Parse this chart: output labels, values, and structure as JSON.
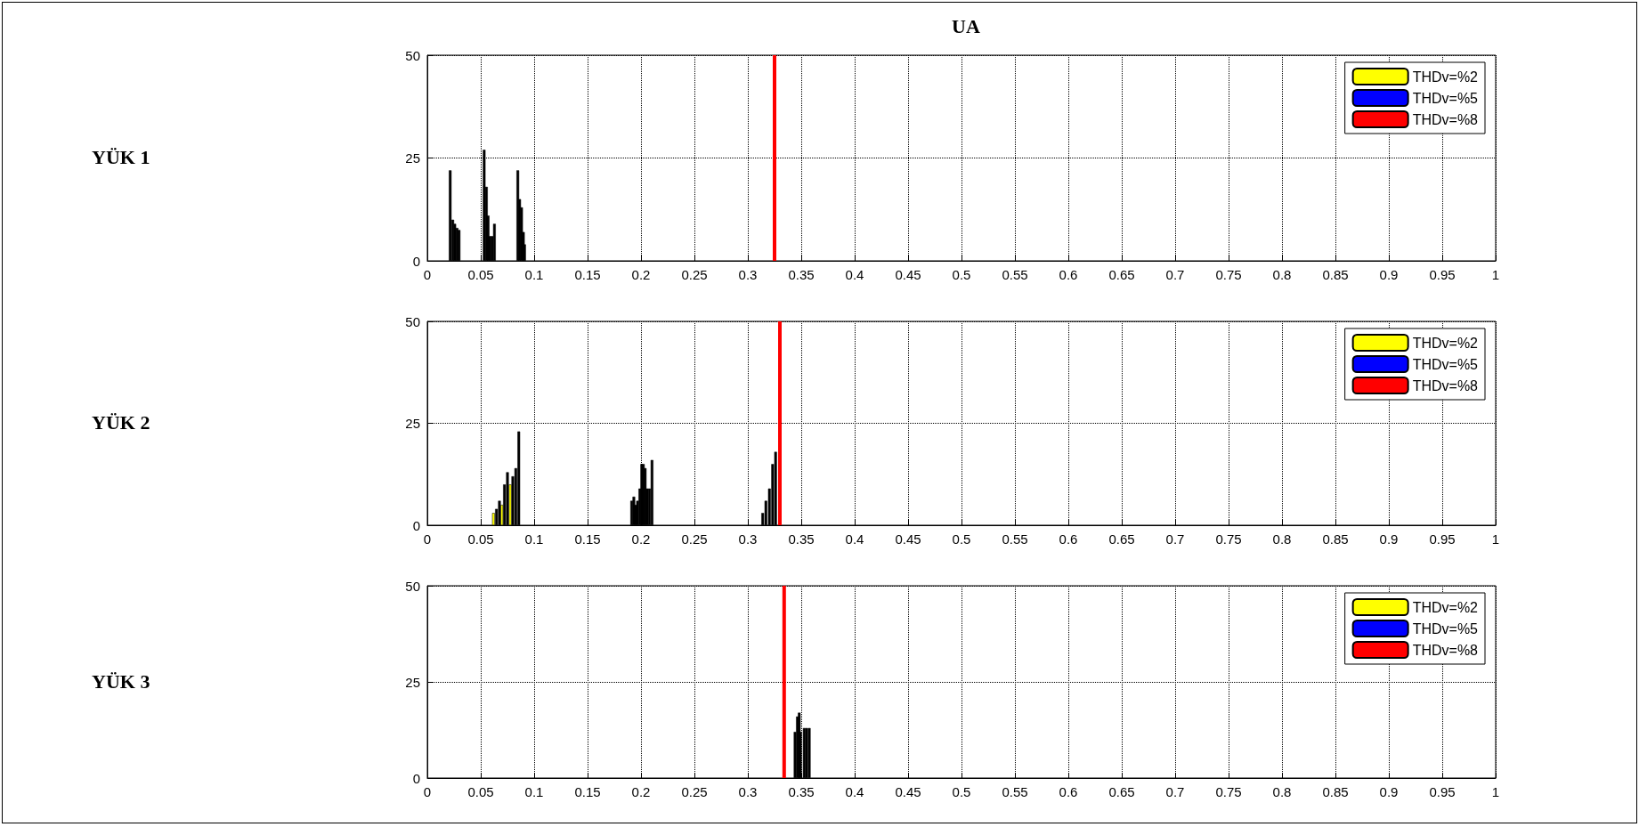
{
  "chart_data": [
    {
      "type": "bar",
      "title": "UA",
      "ylabel": "YÜK 1",
      "xlim": [
        0,
        1
      ],
      "ylim": [
        0,
        50
      ],
      "xticks": [
        0,
        0.05,
        0.1,
        0.15,
        0.2,
        0.25,
        0.3,
        0.35,
        0.4,
        0.45,
        0.5,
        0.55,
        0.6,
        0.65,
        0.7,
        0.75,
        0.8,
        0.85,
        0.9,
        0.95,
        1
      ],
      "yticks": [
        0,
        25,
        50
      ],
      "grid": true,
      "legend": "top right",
      "series": [
        {
          "name": "THDv=%2",
          "color": "#ffff00"
        },
        {
          "name": "THDv=%5",
          "color": "#0000ff"
        },
        {
          "name": "THDv=%8",
          "color": "#ff0000"
        },
        {
          "color": "#000000",
          "x": [
            0.0214,
            0.0238,
            0.0257,
            0.0278,
            0.0297,
            0.0532,
            0.0553,
            0.0569,
            0.0586,
            0.0606,
            0.0628,
            0.0847,
            0.0864,
            0.0882,
            0.0899,
            0.091
          ],
          "values": [
            22,
            10,
            9,
            8,
            7.5,
            27,
            18,
            11,
            6,
            6,
            9,
            22,
            15,
            13,
            7,
            4
          ]
        }
      ],
      "ref_lines": [
        {
          "axis": "x",
          "value": 0.325,
          "color": "#ff0000"
        }
      ]
    },
    {
      "type": "bar",
      "ylabel": "YÜK 2",
      "xlim": [
        0,
        1
      ],
      "ylim": [
        0,
        50
      ],
      "xticks": [
        0,
        0.05,
        0.1,
        0.15,
        0.2,
        0.25,
        0.3,
        0.35,
        0.4,
        0.45,
        0.5,
        0.55,
        0.6,
        0.65,
        0.7,
        0.75,
        0.8,
        0.85,
        0.9,
        0.95,
        1
      ],
      "yticks": [
        0,
        25,
        50
      ],
      "grid": true,
      "legend": "top right",
      "series": [
        {
          "name": "THDv=%2",
          "color": "#ffff00",
          "x": [
            0.0619,
            0.0697,
            0.0775
          ],
          "values": [
            3,
            5,
            10
          ]
        },
        {
          "name": "THDv=%5",
          "color": "#0000ff"
        },
        {
          "name": "THDv=%8",
          "color": "#ff0000"
        },
        {
          "color": "#000000",
          "x": [
            0.0647,
            0.0675,
            0.0722,
            0.075,
            0.08,
            0.0828,
            0.0856,
            0.1913,
            0.1933,
            0.1951,
            0.1968,
            0.1989,
            0.2007,
            0.2022,
            0.2039,
            0.2058,
            0.2079,
            0.2103,
            0.3139,
            0.3169,
            0.3202,
            0.3232,
            0.326
          ],
          "values": [
            4,
            6,
            10,
            13,
            12,
            14,
            23,
            6,
            7,
            5,
            6,
            9,
            15,
            15,
            14,
            9,
            9,
            16,
            3,
            6,
            9,
            15,
            18
          ]
        }
      ],
      "ref_lines": [
        {
          "axis": "x",
          "value": 0.33,
          "color": "#ff0000"
        }
      ]
    },
    {
      "type": "bar",
      "ylabel": "YÜK 3",
      "xlim": [
        0,
        1
      ],
      "ylim": [
        0,
        50
      ],
      "xticks": [
        0,
        0.05,
        0.1,
        0.15,
        0.2,
        0.25,
        0.3,
        0.35,
        0.4,
        0.45,
        0.5,
        0.55,
        0.6,
        0.65,
        0.7,
        0.75,
        0.8,
        0.85,
        0.9,
        0.95,
        1
      ],
      "yticks": [
        0,
        25,
        50
      ],
      "grid": true,
      "legend": "top right",
      "series": [
        {
          "name": "THDv=%2",
          "color": "#ffff00"
        },
        {
          "name": "THDv=%5",
          "color": "#0000ff"
        },
        {
          "name": "THDv=%8",
          "color": "#ff0000"
        },
        {
          "color": "#000000",
          "x": [
            0.3442,
            0.3464,
            0.3481,
            0.3492,
            0.3528,
            0.355,
            0.3575
          ],
          "values": [
            12,
            16,
            17,
            12,
            13,
            13,
            13
          ]
        }
      ],
      "ref_lines": [
        {
          "axis": "x",
          "value": 0.334,
          "color": "#ff0000"
        }
      ]
    }
  ]
}
